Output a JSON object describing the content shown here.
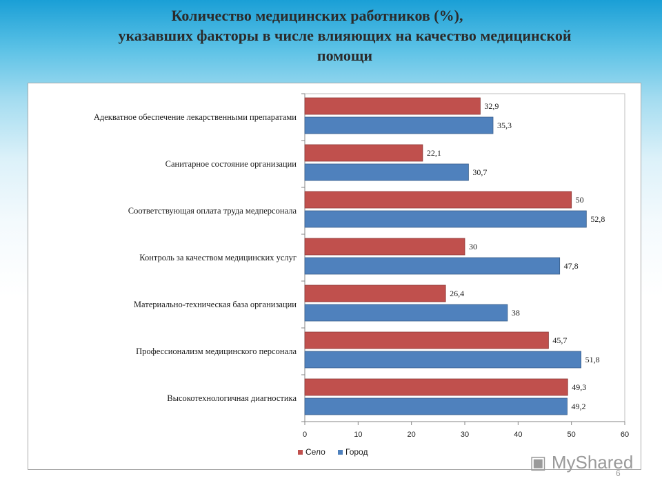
{
  "title": {
    "line1": "Количество медицинских работников (%),",
    "line2": "указавших факторы в числе влияющих на качество медицинской",
    "line3": "помощи"
  },
  "chart_data": {
    "type": "bar",
    "orientation": "horizontal",
    "categories": [
      "Адекватное обеспечение лекарственными препаратами",
      "Санитарное состояние организации",
      "Соответствующая  оплата труда медперсонала",
      "Контроль  за качеством медицинских услуг",
      "Материально-техническая база организации",
      "Профессионализм  медицинского персонала",
      "Высокотехнологичная диагностика"
    ],
    "series": [
      {
        "name": "Село",
        "color": "#c0504d",
        "values": [
          32.9,
          22.1,
          50,
          30,
          26.4,
          45.7,
          49.3
        ],
        "labels": [
          "32,9",
          "22,1",
          "50",
          "30",
          "26,4",
          "45,7",
          "49,3"
        ]
      },
      {
        "name": "Город",
        "color": "#4f81bd",
        "values": [
          35.3,
          30.7,
          52.8,
          47.8,
          38,
          51.8,
          49.2
        ],
        "labels": [
          "35,3",
          "30,7",
          "52,8",
          "47,8",
          "38",
          "51,8",
          "49,2"
        ]
      }
    ],
    "xlim": [
      0,
      60
    ],
    "xticks": [
      "0",
      "10",
      "20",
      "30",
      "40",
      "50",
      "60"
    ],
    "grid": false,
    "legend": "bottom"
  },
  "watermark": "MyShared",
  "slide_number": "6"
}
